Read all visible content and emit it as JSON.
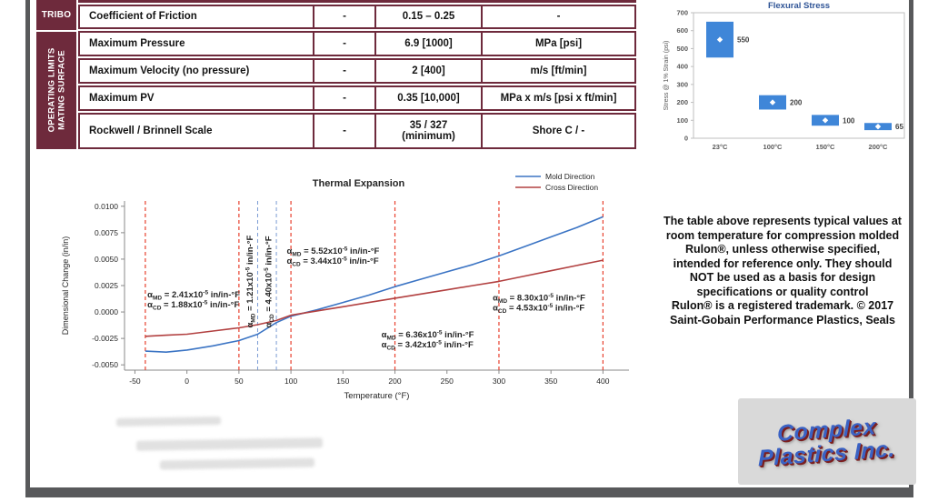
{
  "table": {
    "sections": [
      {
        "label": "TRIBO"
      },
      {
        "line1": "OPERATING LIMITS",
        "line2": "MATING SURFACE"
      }
    ],
    "rows": [
      {
        "property": "Coefficient of Friction",
        "col2": "-",
        "value": "0.15 – 0.25",
        "value2": "",
        "units": "-"
      },
      {
        "property": "Maximum Pressure",
        "col2": "-",
        "value": "6.9 [1000]",
        "value2": "",
        "units": "MPa [psi]"
      },
      {
        "property": "Maximum Velocity (no pressure)",
        "col2": "-",
        "value": "2 [400]",
        "value2": "",
        "units": "m/s [ft/min]"
      },
      {
        "property": "Maximum PV",
        "col2": "-",
        "value": "0.35 [10,000]",
        "value2": "",
        "units": "MPa x m/s [psi x ft/min]"
      },
      {
        "property": "Rockwell / Brinnell Scale",
        "col2": "-",
        "value": "35 / 327",
        "value2": "(minimum)",
        "units": "Shore C / -"
      }
    ]
  },
  "notes": {
    "lines": [
      "The table above represents typical values at",
      "room temperature for compression molded",
      "Rulon®, unless otherwise specified,",
      "intended for reference only. They should",
      "NOT be used as a basis for design",
      "specifications or quality control",
      "Rulon® is a registered trademark. © 2017",
      "Saint-Gobain Performance Plastics, Seals"
    ]
  },
  "logo": {
    "line1": "Complex",
    "line2": "Plastics Inc."
  },
  "chart_data": [
    {
      "type": "floating-bar",
      "title": "Flexural Stress",
      "ylabel": "Stress @ 1% Strain (psi)",
      "categories": [
        "23°C",
        "100°C",
        "150°C",
        "200°C"
      ],
      "bars": [
        {
          "low": 450,
          "high": 650,
          "marker": 550,
          "label": "550"
        },
        {
          "low": 160,
          "high": 240,
          "marker": 200,
          "label": "200"
        },
        {
          "low": 70,
          "high": 130,
          "marker": 100,
          "label": "100"
        },
        {
          "low": 45,
          "high": 85,
          "marker": 65,
          "label": "65"
        }
      ],
      "ylim": [
        0,
        700
      ],
      "ytick_step": 100,
      "colors": {
        "bar": "#3f86d8",
        "marker": "#ffffff",
        "title": "#2f5496",
        "label": "#404040"
      }
    },
    {
      "type": "line",
      "title": "Thermal Expansion",
      "xlabel": "Temperature (°F)",
      "ylabel": "Dimensional Change (in/in)",
      "xlim": [
        -60,
        425
      ],
      "ylim": [
        -0.0055,
        0.0105
      ],
      "xticks": [
        -50,
        0,
        50,
        100,
        150,
        200,
        250,
        300,
        350,
        400
      ],
      "yticks": [
        0.01,
        0.0075,
        0.005,
        0.0025,
        0,
        -0.0025,
        -0.005
      ],
      "ytick_labels": [
        "0.0100",
        "0.0075",
        "0.0050",
        "0.0025",
        "0.0000",
        "-0.0025",
        "-0.0050"
      ],
      "series": [
        {
          "name": "Mold Direction",
          "color": "#3b74c4",
          "points": [
            [
              -40,
              -0.0037
            ],
            [
              -20,
              -0.0038
            ],
            [
              0,
              -0.0036
            ],
            [
              25,
              -0.0032
            ],
            [
              50,
              -0.0027
            ],
            [
              68,
              -0.0021
            ],
            [
              86,
              -0.001
            ],
            [
              100,
              -0.0004
            ],
            [
              125,
              0.0002
            ],
            [
              150,
              0.0009
            ],
            [
              175,
              0.0016
            ],
            [
              200,
              0.0024
            ],
            [
              225,
              0.0031
            ],
            [
              250,
              0.0038
            ],
            [
              275,
              0.0045
            ],
            [
              300,
              0.0053
            ],
            [
              325,
              0.0062
            ],
            [
              350,
              0.0071
            ],
            [
              375,
              0.008
            ],
            [
              400,
              0.009
            ]
          ]
        },
        {
          "name": "Cross Direction",
          "color": "#b24040",
          "points": [
            [
              -40,
              -0.0023
            ],
            [
              -20,
              -0.0022
            ],
            [
              0,
              -0.0021
            ],
            [
              25,
              -0.0018
            ],
            [
              50,
              -0.0015
            ],
            [
              68,
              -0.0012
            ],
            [
              86,
              -0.0008
            ],
            [
              100,
              -0.0003
            ],
            [
              125,
              0.0001
            ],
            [
              150,
              0.0005
            ],
            [
              175,
              0.0009
            ],
            [
              200,
              0.0013
            ],
            [
              225,
              0.0017
            ],
            [
              250,
              0.0021
            ],
            [
              275,
              0.0025
            ],
            [
              300,
              0.0029
            ],
            [
              325,
              0.0034
            ],
            [
              350,
              0.0039
            ],
            [
              375,
              0.0044
            ],
            [
              400,
              0.0049
            ]
          ]
        }
      ],
      "vlines_red": [
        -40,
        50,
        100,
        200,
        300,
        400
      ],
      "vlines_blue": [
        68,
        86
      ],
      "legend": [
        {
          "label": "Mold Direction",
          "color": "#3b74c4"
        },
        {
          "label": "Cross Direction",
          "color": "#b24040"
        }
      ],
      "annotations": [
        {
          "x": -38,
          "y": 0.0014,
          "rotate": 0,
          "lines": [
            "α[MD] = 2.41x10[^-5] in/in-°F",
            "α[CD] = 1.88x10[^-5] in/in-°F"
          ]
        },
        {
          "x": 63,
          "y": -0.0015,
          "rotate": -90,
          "lines": [
            "α[MD] = 1.21x10[^-5] in/in-°F"
          ]
        },
        {
          "x": 81,
          "y": -0.0015,
          "rotate": -90,
          "lines": [
            "α[CD] = 4.40x10[^-5] in/in-°F"
          ]
        },
        {
          "x": 96,
          "y": 0.0055,
          "rotate": 0,
          "lines": [
            "α[MD] = 5.52x10[^-5] in/in-°F",
            "α[CD] = 3.44x10[^-5] in/in-°F"
          ]
        },
        {
          "x": 187,
          "y": -0.0024,
          "rotate": 0,
          "lines": [
            "α[MD] = 6.36x10[^-5] in/in-°F",
            "α[CD] = 3.42x10[^-5] in/in-°F"
          ]
        },
        {
          "x": 294,
          "y": 0.0011,
          "rotate": 0,
          "lines": [
            "α[MD] = 8.30x10[^-5] in/in-°F",
            "α[CD] = 4.53x10[^-5] in/in-°F"
          ]
        }
      ]
    }
  ]
}
